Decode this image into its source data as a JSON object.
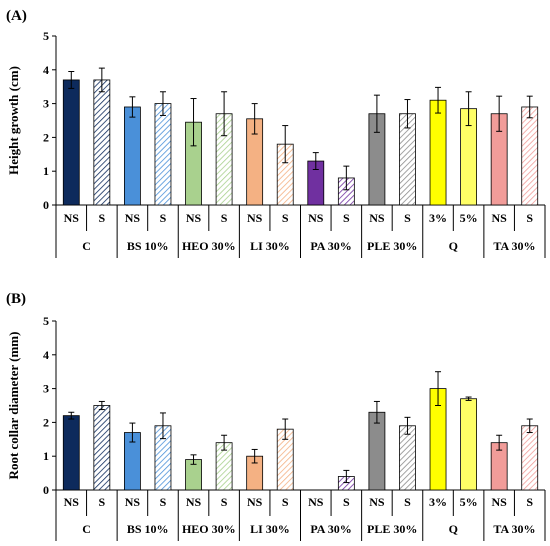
{
  "chart_data": [
    {
      "type": "bar",
      "panel_label": "(A)",
      "ylabel": "Height growth (cm)",
      "xlabel": "",
      "ylim": [
        0,
        5
      ],
      "yticks": [
        "0",
        "1",
        "2",
        "3",
        "4",
        "5"
      ],
      "groups": [
        {
          "label": "C",
          "bars": [
            {
              "label": "NS",
              "value": 3.7,
              "error": 0.25,
              "color": "#0d2a5c",
              "pattern": "solid"
            },
            {
              "label": "S",
              "value": 3.7,
              "error": 0.35,
              "color": "#0d2a5c",
              "pattern": "hatch"
            }
          ]
        },
        {
          "label": "BS 10%",
          "bars": [
            {
              "label": "NS",
              "value": 2.9,
              "error": 0.3,
              "color": "#4a90d9",
              "pattern": "solid"
            },
            {
              "label": "S",
              "value": 3.0,
              "error": 0.35,
              "color": "#4a90d9",
              "pattern": "hatch"
            }
          ]
        },
        {
          "label": "HEO 30%",
          "bars": [
            {
              "label": "NS",
              "value": 2.45,
              "error": 0.7,
              "color": "#a9d18e",
              "pattern": "solid"
            },
            {
              "label": "S",
              "value": 2.7,
              "error": 0.65,
              "color": "#a9d18e",
              "pattern": "hatch"
            }
          ]
        },
        {
          "label": "LI 30%",
          "bars": [
            {
              "label": "NS",
              "value": 2.55,
              "error": 0.45,
              "color": "#f4b183",
              "pattern": "solid"
            },
            {
              "label": "S",
              "value": 1.8,
              "error": 0.55,
              "color": "#f4b183",
              "pattern": "hatch"
            }
          ]
        },
        {
          "label": "PA 30%",
          "bars": [
            {
              "label": "NS",
              "value": 1.3,
              "error": 0.25,
              "color": "#7030a0",
              "pattern": "solid"
            },
            {
              "label": "S",
              "value": 0.8,
              "error": 0.35,
              "color": "#7030a0",
              "pattern": "hatch"
            }
          ]
        },
        {
          "label": "PLE 30%",
          "bars": [
            {
              "label": "NS",
              "value": 2.7,
              "error": 0.55,
              "color": "#8c8c8c",
              "pattern": "solid"
            },
            {
              "label": "S",
              "value": 2.7,
              "error": 0.42,
              "color": "#8c8c8c",
              "pattern": "hatch"
            }
          ]
        },
        {
          "label": "Q",
          "bars": [
            {
              "label": "3%",
              "value": 3.1,
              "error": 0.38,
              "color": "#ffff00",
              "pattern": "solid"
            },
            {
              "label": "5%",
              "value": 2.85,
              "error": 0.5,
              "color": "#ffff66",
              "pattern": "solid"
            }
          ]
        },
        {
          "label": "TA 30%",
          "bars": [
            {
              "label": "NS",
              "value": 2.7,
              "error": 0.52,
              "color": "#f19c99",
              "pattern": "solid"
            },
            {
              "label": "S",
              "value": 2.9,
              "error": 0.32,
              "color": "#f19c99",
              "pattern": "hatch"
            }
          ]
        }
      ]
    },
    {
      "type": "bar",
      "panel_label": "(B)",
      "ylabel": "Root collar diameter (mm)",
      "xlabel": "",
      "ylim": [
        0,
        5
      ],
      "yticks": [
        "0",
        "1",
        "2",
        "3",
        "4",
        "5"
      ],
      "groups": [
        {
          "label": "C",
          "bars": [
            {
              "label": "NS",
              "value": 2.2,
              "error": 0.1,
              "color": "#0d2a5c",
              "pattern": "solid"
            },
            {
              "label": "S",
              "value": 2.5,
              "error": 0.12,
              "color": "#0d2a5c",
              "pattern": "hatch"
            }
          ]
        },
        {
          "label": "BS 10%",
          "bars": [
            {
              "label": "NS",
              "value": 1.7,
              "error": 0.28,
              "color": "#4a90d9",
              "pattern": "solid"
            },
            {
              "label": "S",
              "value": 1.9,
              "error": 0.38,
              "color": "#4a90d9",
              "pattern": "hatch"
            }
          ]
        },
        {
          "label": "HEO 30%",
          "bars": [
            {
              "label": "NS",
              "value": 0.9,
              "error": 0.14,
              "color": "#a9d18e",
              "pattern": "solid"
            },
            {
              "label": "S",
              "value": 1.4,
              "error": 0.22,
              "color": "#a9d18e",
              "pattern": "hatch"
            }
          ]
        },
        {
          "label": "LI 30%",
          "bars": [
            {
              "label": "NS",
              "value": 1.0,
              "error": 0.2,
              "color": "#f4b183",
              "pattern": "solid"
            },
            {
              "label": "S",
              "value": 1.8,
              "error": 0.3,
              "color": "#f4b183",
              "pattern": "hatch"
            }
          ]
        },
        {
          "label": "PA 30%",
          "bars": [
            {
              "label": "NS",
              "value": 0,
              "error": 0,
              "color": "#7030a0",
              "pattern": "solid"
            },
            {
              "label": "S",
              "value": 0.4,
              "error": 0.18,
              "color": "#7030a0",
              "pattern": "hatch"
            }
          ]
        },
        {
          "label": "PLE 30%",
          "bars": [
            {
              "label": "NS",
              "value": 2.3,
              "error": 0.32,
              "color": "#8c8c8c",
              "pattern": "solid"
            },
            {
              "label": "S",
              "value": 1.9,
              "error": 0.25,
              "color": "#8c8c8c",
              "pattern": "hatch"
            }
          ]
        },
        {
          "label": "Q",
          "bars": [
            {
              "label": "3%",
              "value": 3.0,
              "error": 0.5,
              "color": "#ffff00",
              "pattern": "solid"
            },
            {
              "label": "5%",
              "value": 2.7,
              "error": 0.05,
              "color": "#ffff66",
              "pattern": "solid"
            }
          ]
        },
        {
          "label": "TA 30%",
          "bars": [
            {
              "label": "NS",
              "value": 1.4,
              "error": 0.22,
              "color": "#f19c99",
              "pattern": "solid"
            },
            {
              "label": "S",
              "value": 1.9,
              "error": 0.2,
              "color": "#f19c99",
              "pattern": "hatch"
            }
          ]
        }
      ]
    }
  ]
}
